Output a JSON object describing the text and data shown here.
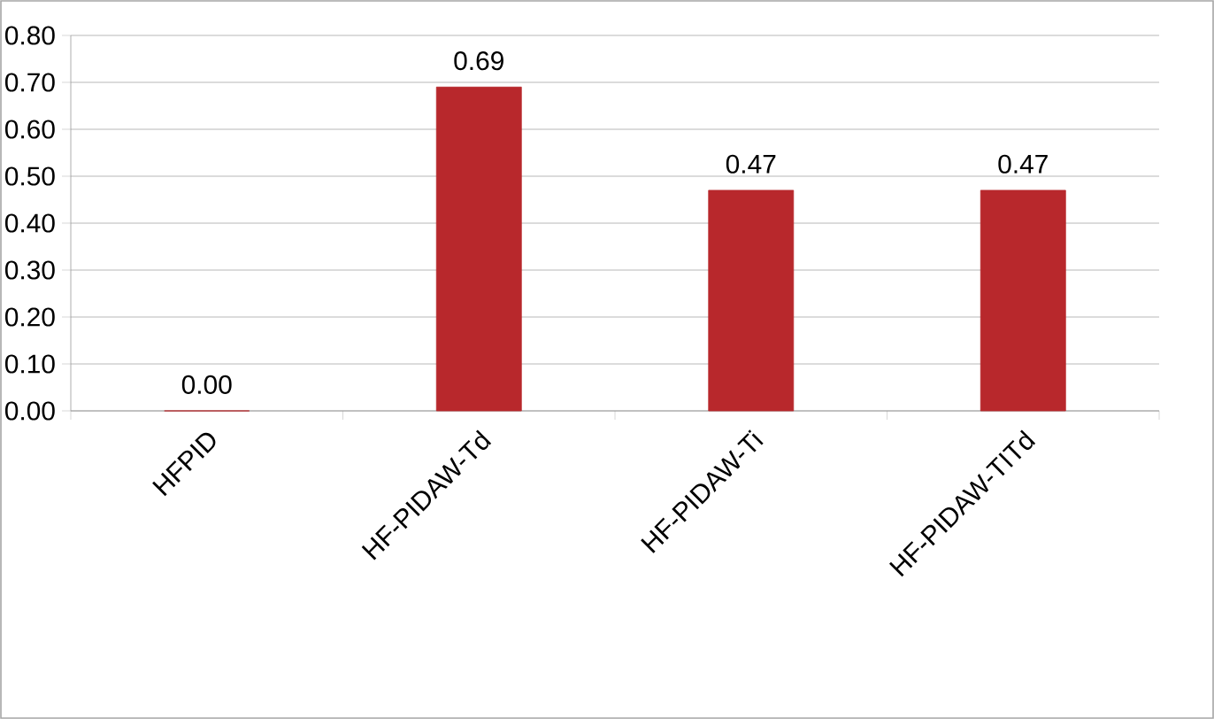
{
  "chart_data": {
    "type": "bar",
    "categories": [
      "HFPID",
      "HF-PIDAW-Td",
      "HF-PIDAW-Ti",
      "HF-PIDAW-TITd"
    ],
    "values": [
      0.0,
      0.69,
      0.47,
      0.47
    ],
    "value_labels": [
      "0.00",
      "0.69",
      "0.47",
      "0.47"
    ],
    "color": "#b8282c",
    "ylim": [
      0,
      0.8
    ],
    "yticks": [
      {
        "value": 0,
        "label": "0.00"
      },
      {
        "value": 0.1,
        "label": "0.10"
      },
      {
        "value": 0.2,
        "label": "0.20"
      },
      {
        "value": 0.3,
        "label": "0.30"
      },
      {
        "value": 0.4,
        "label": "0.40"
      },
      {
        "value": 0.5,
        "label": "0.50"
      },
      {
        "value": 0.6,
        "label": "0.60"
      },
      {
        "value": 0.7,
        "label": "0.70"
      },
      {
        "value": 0.8,
        "label": "0.80"
      }
    ],
    "grid": "y"
  }
}
